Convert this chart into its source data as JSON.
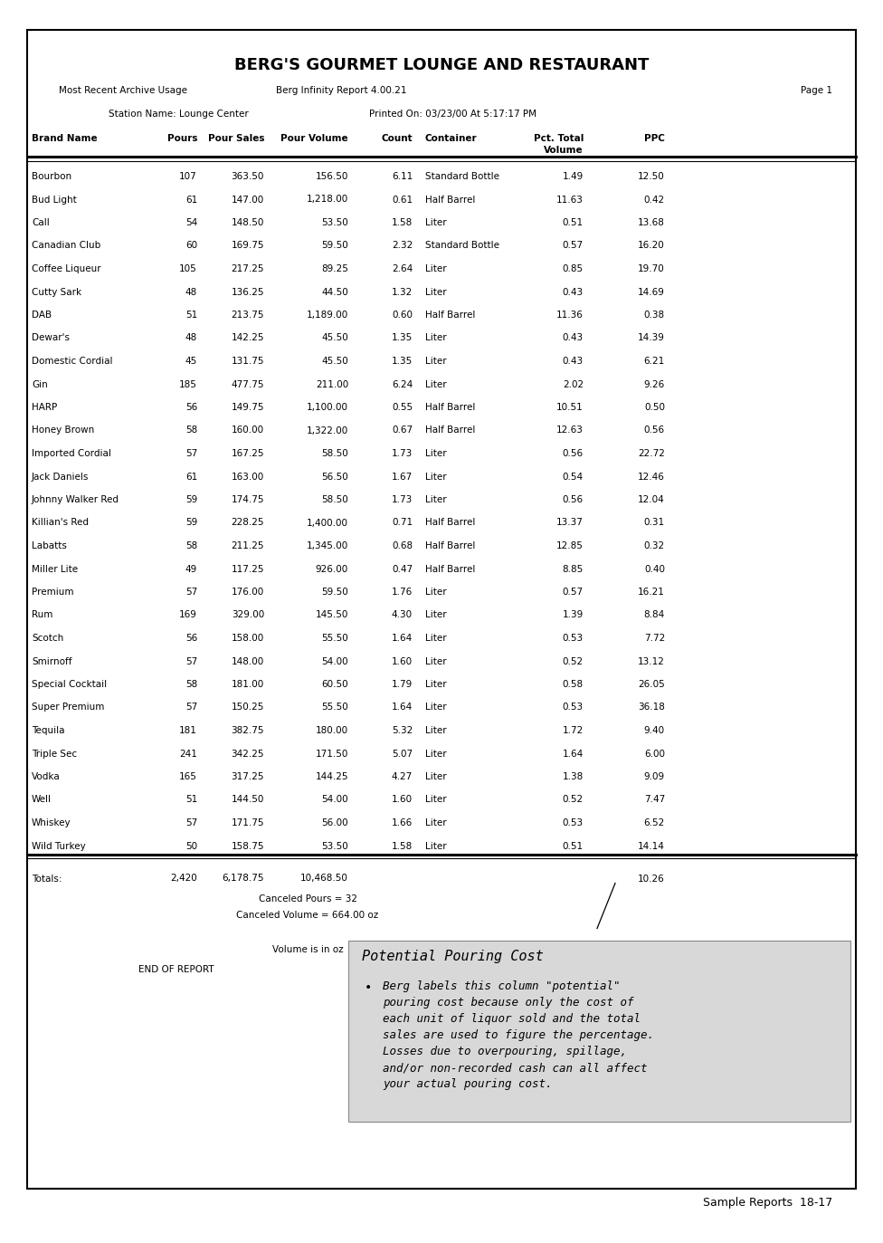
{
  "title": "BERG'S GOURMET LOUNGE AND RESTAURANT",
  "subtitle_left": "Most Recent Archive Usage",
  "subtitle_center": "Berg Infinity Report 4.00.21",
  "subtitle_right": "Page 1",
  "station": "Station Name: Lounge Center",
  "printed": "Printed On: 03/23/00 At 5:17:17 PM",
  "rows": [
    [
      "Bourbon",
      "107",
      "363.50",
      "156.50",
      "6.11",
      "Standard Bottle",
      "1.49",
      "12.50"
    ],
    [
      "Bud Light",
      "61",
      "147.00",
      "1,218.00",
      "0.61",
      "Half Barrel",
      "11.63",
      "0.42"
    ],
    [
      "Call",
      "54",
      "148.50",
      "53.50",
      "1.58",
      "Liter",
      "0.51",
      "13.68"
    ],
    [
      "Canadian Club",
      "60",
      "169.75",
      "59.50",
      "2.32",
      "Standard Bottle",
      "0.57",
      "16.20"
    ],
    [
      "Coffee Liqueur",
      "105",
      "217.25",
      "89.25",
      "2.64",
      "Liter",
      "0.85",
      "19.70"
    ],
    [
      "Cutty Sark",
      "48",
      "136.25",
      "44.50",
      "1.32",
      "Liter",
      "0.43",
      "14.69"
    ],
    [
      "DAB",
      "51",
      "213.75",
      "1,189.00",
      "0.60",
      "Half Barrel",
      "11.36",
      "0.38"
    ],
    [
      "Dewar's",
      "48",
      "142.25",
      "45.50",
      "1.35",
      "Liter",
      "0.43",
      "14.39"
    ],
    [
      "Domestic Cordial",
      "45",
      "131.75",
      "45.50",
      "1.35",
      "Liter",
      "0.43",
      "6.21"
    ],
    [
      "Gin",
      "185",
      "477.75",
      "211.00",
      "6.24",
      "Liter",
      "2.02",
      "9.26"
    ],
    [
      "HARP",
      "56",
      "149.75",
      "1,100.00",
      "0.55",
      "Half Barrel",
      "10.51",
      "0.50"
    ],
    [
      "Honey Brown",
      "58",
      "160.00",
      "1,322.00",
      "0.67",
      "Half Barrel",
      "12.63",
      "0.56"
    ],
    [
      "Imported Cordial",
      "57",
      "167.25",
      "58.50",
      "1.73",
      "Liter",
      "0.56",
      "22.72"
    ],
    [
      "Jack Daniels",
      "61",
      "163.00",
      "56.50",
      "1.67",
      "Liter",
      "0.54",
      "12.46"
    ],
    [
      "Johnny Walker Red",
      "59",
      "174.75",
      "58.50",
      "1.73",
      "Liter",
      "0.56",
      "12.04"
    ],
    [
      "Killian's Red",
      "59",
      "228.25",
      "1,400.00",
      "0.71",
      "Half Barrel",
      "13.37",
      "0.31"
    ],
    [
      "Labatts",
      "58",
      "211.25",
      "1,345.00",
      "0.68",
      "Half Barrel",
      "12.85",
      "0.32"
    ],
    [
      "Miller Lite",
      "49",
      "117.25",
      "926.00",
      "0.47",
      "Half Barrel",
      "8.85",
      "0.40"
    ],
    [
      "Premium",
      "57",
      "176.00",
      "59.50",
      "1.76",
      "Liter",
      "0.57",
      "16.21"
    ],
    [
      "Rum",
      "169",
      "329.00",
      "145.50",
      "4.30",
      "Liter",
      "1.39",
      "8.84"
    ],
    [
      "Scotch",
      "56",
      "158.00",
      "55.50",
      "1.64",
      "Liter",
      "0.53",
      "7.72"
    ],
    [
      "Smirnoff",
      "57",
      "148.00",
      "54.00",
      "1.60",
      "Liter",
      "0.52",
      "13.12"
    ],
    [
      "Special Cocktail",
      "58",
      "181.00",
      "60.50",
      "1.79",
      "Liter",
      "0.58",
      "26.05"
    ],
    [
      "Super Premium",
      "57",
      "150.25",
      "55.50",
      "1.64",
      "Liter",
      "0.53",
      "36.18"
    ],
    [
      "Tequila",
      "181",
      "382.75",
      "180.00",
      "5.32",
      "Liter",
      "1.72",
      "9.40"
    ],
    [
      "Triple Sec",
      "241",
      "342.25",
      "171.50",
      "5.07",
      "Liter",
      "1.64",
      "6.00"
    ],
    [
      "Vodka",
      "165",
      "317.25",
      "144.25",
      "4.27",
      "Liter",
      "1.38",
      "9.09"
    ],
    [
      "Well",
      "51",
      "144.50",
      "54.00",
      "1.60",
      "Liter",
      "0.52",
      "7.47"
    ],
    [
      "Whiskey",
      "57",
      "171.75",
      "56.00",
      "1.66",
      "Liter",
      "0.53",
      "6.52"
    ],
    [
      "Wild Turkey",
      "50",
      "158.75",
      "53.50",
      "1.58",
      "Liter",
      "0.51",
      "14.14"
    ]
  ],
  "totals_label": "Totals:",
  "totals_pours": "2,420",
  "totals_sales": "6,178.75",
  "totals_volume": "10,468.50",
  "totals_ppc": "10.26",
  "canceled_pours": "Canceled Pours = 32",
  "canceled_volume": "Canceled Volume = 664.00 oz",
  "volume_note": "Volume is in oz",
  "end_of_report": "END OF REPORT",
  "note_title": "Potential Pouring Cost",
  "note_lines": [
    "Berg labels this column \"potential\"",
    "pouring cost because only the cost of",
    "each unit of liquor sold and the total",
    "sales are used to figure the percentage.",
    "Losses due to overpouring, spillage,",
    "and/or non-recorded cash can all affect",
    "your actual pouring cost."
  ],
  "page_footer": "Sample Reports  18-17",
  "bg_color": "#ffffff",
  "note_bg_color": "#d8d8d8",
  "border_color": "#000000"
}
